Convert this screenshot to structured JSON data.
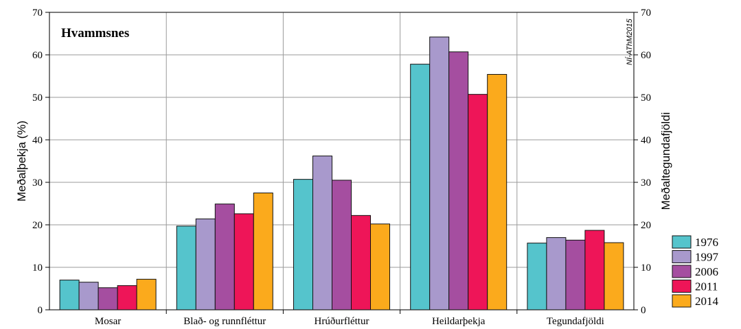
{
  "chart_data": {
    "type": "bar",
    "title": "Hvammsnes",
    "credit": "NÍ-AThM2015",
    "ylabel": "Meðalþekja (%)",
    "y2label": "Meðaltegundafjöldi",
    "ylim": [
      0,
      70
    ],
    "yticks": [
      0,
      10,
      20,
      30,
      40,
      50,
      60,
      70
    ],
    "grid": true,
    "legend_position": "bottom-right",
    "categories": [
      "Mosar",
      "Blað- og runnfléttur",
      "Hrúðurfléttur",
      "Heildarþekja",
      "Tegundafjöldi"
    ],
    "series": [
      {
        "name": "1976",
        "color": "#55c4cc",
        "values": [
          7.0,
          19.7,
          30.7,
          57.8,
          15.7
        ]
      },
      {
        "name": "1997",
        "color": "#a899cc",
        "values": [
          6.5,
          21.4,
          36.2,
          64.2,
          17.0
        ]
      },
      {
        "name": "2006",
        "color": "#a54ea0",
        "values": [
          5.2,
          24.9,
          30.5,
          60.7,
          16.4
        ]
      },
      {
        "name": "2011",
        "color": "#ee1558",
        "values": [
          5.7,
          22.6,
          22.2,
          50.7,
          18.7
        ]
      },
      {
        "name": "2014",
        "color": "#fbaa1c",
        "values": [
          7.2,
          27.5,
          20.2,
          55.4,
          15.8
        ]
      }
    ]
  }
}
